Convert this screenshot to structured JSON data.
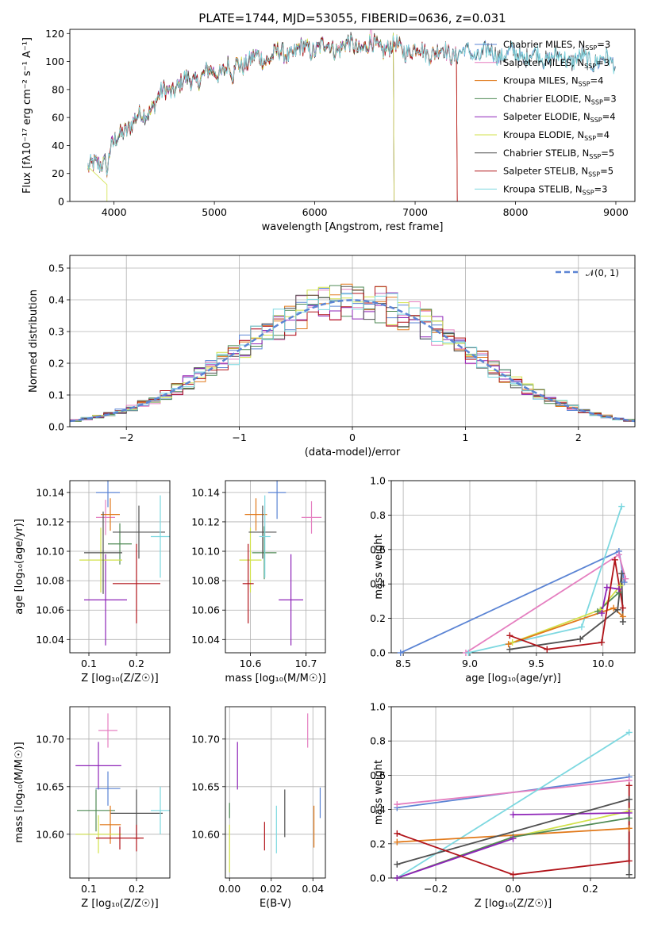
{
  "title": "PLATE=1744, MJD=53055, FIBERID=0636, z=0.031",
  "colors": {
    "blue": "#5b84d4",
    "pink": "#e57fc0",
    "orange": "#e1791a",
    "green": "#4f8a55",
    "purple": "#8e24b8",
    "yellow": "#d2e24a",
    "dark": "#505050",
    "red": "#b1141a",
    "cyan": "#7dd8e0"
  },
  "chart_data": [
    {
      "type": "line",
      "name": "spectrum",
      "xlabel": "wavelength [Angstrom, rest frame]",
      "ylabel": "Flux [fλ10⁻¹⁷ erg cm⁻² s⁻¹ A⁻¹]",
      "xlim": [
        3560,
        9190
      ],
      "ylim": [
        0,
        123
      ],
      "xticks": [
        "4000",
        "5000",
        "6000",
        "7000",
        "8000",
        "9000"
      ],
      "yticks": [
        "0",
        "20",
        "40",
        "60",
        "80",
        "100",
        "120"
      ],
      "legend": "top-right",
      "series": [
        {
          "name": "Chabrier MILES, N_SSP=3",
          "color": "#5b84d4",
          "x_end": 9000
        },
        {
          "name": "Salpeter MILES, N_SSP=3",
          "color": "#e57fc0",
          "x_end": 7420
        },
        {
          "name": "Kroupa MILES, N_SSP=4",
          "color": "#e1791a",
          "x_end": 7420
        },
        {
          "name": "Chabrier ELODIE, N_SSP=3",
          "color": "#4f8a55",
          "x_end": 6790
        },
        {
          "name": "Salpeter ELODIE, N_SSP=4",
          "color": "#8e24b8",
          "x_end": 6790
        },
        {
          "name": "Kroupa ELODIE, N_SSP=4",
          "color": "#d2e24a",
          "x_end": 6790
        },
        {
          "name": "Chabrier STELIB, N_SSP=5",
          "color": "#505050",
          "x_end": 9000
        },
        {
          "name": "Salpeter STELIB, N_SSP=5",
          "color": "#b1141a",
          "x_end": 7420
        },
        {
          "name": "Kroupa STELIB, N_SSP=3",
          "color": "#7dd8e0",
          "x_end": 9000
        }
      ],
      "continuum": {
        "x": [
          3740,
          3900,
          4000,
          4100,
          4300,
          4500,
          4700,
          4900,
          5100,
          5200,
          5500,
          5800,
          6000,
          6300,
          6500,
          6800,
          7000,
          7200,
          7420,
          7600,
          8000,
          8500,
          9000
        ],
        "y": [
          22,
          30,
          40,
          52,
          62,
          78,
          85,
          90,
          95,
          98,
          103,
          107,
          110,
          111,
          111,
          110,
          108,
          107,
          106,
          106,
          105,
          102,
          100
        ]
      }
    },
    {
      "type": "bar",
      "name": "residual-histogram",
      "xlabel": "(data-model)/error",
      "ylabel": "Normed distribution",
      "xlim": [
        -2.5,
        2.5
      ],
      "ylim": [
        0,
        0.54
      ],
      "xticks": [
        "−2",
        "−1",
        "0",
        "1",
        "2"
      ],
      "yticks": [
        "0.0",
        "0.1",
        "0.2",
        "0.3",
        "0.4",
        "0.5"
      ],
      "legend": "top-right",
      "reference": {
        "name": "𝒩(0, 1)",
        "color": "#5b84d4",
        "mean": 0,
        "sigma": 1
      }
    },
    {
      "type": "scatter",
      "name": "age-vs-Z",
      "xlabel": "Z [log₁₀(Z/Z☉)]",
      "ylabel": "age  [log₁₀(age/yr)]",
      "xlim": [
        0.06,
        0.27
      ],
      "ylim": [
        10.031,
        10.148
      ],
      "xticks": [
        "0.1",
        "0.2"
      ],
      "yticks": [
        "10.04",
        "10.06",
        "10.08",
        "10.10",
        "10.12",
        "10.14"
      ],
      "points": [
        {
          "color": "#5b84d4",
          "x": 0.14,
          "y": 10.14,
          "xerr": 0.025,
          "yerr": 0.01
        },
        {
          "color": "#e57fc0",
          "x": 0.135,
          "y": 10.123,
          "xerr": 0.02,
          "yerr": 0.012
        },
        {
          "color": "#e1791a",
          "x": 0.145,
          "y": 10.125,
          "xerr": 0.02,
          "yerr": 0.011
        },
        {
          "color": "#4f8a55",
          "x": 0.165,
          "y": 10.105,
          "xerr": 0.025,
          "yerr": 0.014
        },
        {
          "color": "#8e24b8",
          "x": 0.135,
          "y": 10.067,
          "xerr": 0.045,
          "yerr": 0.031
        },
        {
          "color": "#d2e24a",
          "x": 0.125,
          "y": 10.094,
          "xerr": 0.045,
          "yerr": 0.022
        },
        {
          "color": "#505050",
          "x": 0.205,
          "y": 10.113,
          "xerr": 0.055,
          "yerr": 0.018
        },
        {
          "color": "#b1141a",
          "x": 0.2,
          "y": 10.078,
          "xerr": 0.05,
          "yerr": 0.027
        },
        {
          "color": "#7dd8e0",
          "x": 0.25,
          "y": 10.11,
          "xerr": 0.02,
          "yerr": 0.028
        },
        {
          "color": "#505050",
          "x": 0.13,
          "y": 10.099,
          "xerr": 0.04,
          "yerr": 0.028
        }
      ]
    },
    {
      "type": "scatter",
      "name": "age-vs-mass",
      "xlabel": "mass [log₁₀(M/M☉)]",
      "ylabel": "",
      "xlim": [
        10.555,
        10.735
      ],
      "ylim": [
        10.031,
        10.148
      ],
      "xticks": [
        "10.6",
        "10.7"
      ],
      "yticks": [
        "10.04",
        "10.06",
        "10.08",
        "10.10",
        "10.12",
        "10.14"
      ],
      "points": [
        {
          "color": "#5b84d4",
          "x": 10.648,
          "y": 10.14,
          "xerr": 0.016,
          "yerr": 0.018
        },
        {
          "color": "#e57fc0",
          "x": 10.71,
          "y": 10.123,
          "xerr": 0.018,
          "yerr": 0.011
        },
        {
          "color": "#e1791a",
          "x": 10.61,
          "y": 10.125,
          "xerr": 0.02,
          "yerr": 0.011
        },
        {
          "color": "#4f8a55",
          "x": 10.625,
          "y": 10.099,
          "xerr": 0.022,
          "yerr": 0.018
        },
        {
          "color": "#8e24b8",
          "x": 10.673,
          "y": 10.067,
          "xerr": 0.022,
          "yerr": 0.031
        },
        {
          "color": "#d2e24a",
          "x": 10.6,
          "y": 10.094,
          "xerr": 0.02,
          "yerr": 0.022
        },
        {
          "color": "#505050",
          "x": 10.622,
          "y": 10.113,
          "xerr": 0.025,
          "yerr": 0.018
        },
        {
          "color": "#b1141a",
          "x": 10.596,
          "y": 10.078,
          "xerr": 0.01,
          "yerr": 0.027
        },
        {
          "color": "#7dd8e0",
          "x": 10.626,
          "y": 10.11,
          "xerr": 0.01,
          "yerr": 0.028
        }
      ]
    },
    {
      "type": "line",
      "name": "weight-vs-age",
      "xlabel": "age  [log₁₀(age/yr)]",
      "ylabel": "mass weight",
      "xlim": [
        8.41,
        10.24
      ],
      "ylim": [
        0,
        1.0
      ],
      "xticks": [
        "8.5",
        "9.0",
        "9.5",
        "10.0"
      ],
      "yticks": [
        "0.0",
        "0.2",
        "0.4",
        "0.6",
        "0.8",
        "1.0"
      ],
      "series": [
        {
          "color": "#5b84d4",
          "x": [
            8.48,
            10.12,
            10.16
          ],
          "y": [
            0.0,
            0.59,
            0.41
          ]
        },
        {
          "color": "#e57fc0",
          "x": [
            8.97,
            10.12,
            10.17
          ],
          "y": [
            0.0,
            0.57,
            0.43
          ]
        },
        {
          "color": "#7dd8e0",
          "x": [
            8.99,
            9.84,
            10.14
          ],
          "y": [
            0.0,
            0.15,
            0.85
          ]
        },
        {
          "color": "#d2e24a",
          "x": [
            9.32,
            9.98,
            10.13
          ],
          "y": [
            0.06,
            0.25,
            0.39
          ]
        },
        {
          "color": "#e1791a",
          "x": [
            9.29,
            10.08,
            10.15
          ],
          "y": [
            0.05,
            0.26,
            0.21
          ]
        },
        {
          "color": "#4f8a55",
          "x": [
            9.96,
            10.12
          ],
          "y": [
            0.24,
            0.35
          ]
        },
        {
          "color": "#8e24b8",
          "x": [
            9.99,
            10.03,
            10.12
          ],
          "y": [
            0.23,
            0.38,
            0.37
          ]
        },
        {
          "color": "#505050",
          "x": [
            9.3,
            9.83,
            10.11,
            10.14,
            10.15
          ],
          "y": [
            0.02,
            0.08,
            0.25,
            0.46,
            0.18
          ]
        },
        {
          "color": "#b1141a",
          "x": [
            9.3,
            9.58,
            9.99,
            10.09,
            10.15
          ],
          "y": [
            0.1,
            0.02,
            0.06,
            0.54,
            0.26
          ]
        }
      ]
    },
    {
      "type": "scatter",
      "name": "mass-vs-Z",
      "xlabel": "Z [log₁₀(Z/Z☉)]",
      "ylabel": "mass [log₁₀(M/M☉)]",
      "xlim": [
        0.06,
        0.27
      ],
      "ylim": [
        10.554,
        10.734
      ],
      "xticks": [
        "0.1",
        "0.2"
      ],
      "yticks": [
        "10.60",
        "10.65",
        "10.70"
      ],
      "points": [
        {
          "color": "#e57fc0",
          "x": 0.14,
          "y": 10.709,
          "xerr": 0.02,
          "yerr": 0.018
        },
        {
          "color": "#8e24b8",
          "x": 0.12,
          "y": 10.672,
          "xerr": 0.048,
          "yerr": 0.025
        },
        {
          "color": "#5b84d4",
          "x": 0.14,
          "y": 10.648,
          "xerr": 0.026,
          "yerr": 0.018
        },
        {
          "color": "#4f8a55",
          "x": 0.115,
          "y": 10.625,
          "xerr": 0.04,
          "yerr": 0.022
        },
        {
          "color": "#505050",
          "x": 0.2,
          "y": 10.622,
          "xerr": 0.055,
          "yerr": 0.025
        },
        {
          "color": "#7dd8e0",
          "x": 0.25,
          "y": 10.625,
          "xerr": 0.02,
          "yerr": 0.025
        },
        {
          "color": "#e1791a",
          "x": 0.145,
          "y": 10.61,
          "xerr": 0.022,
          "yerr": 0.02
        },
        {
          "color": "#d2e24a",
          "x": 0.12,
          "y": 10.6,
          "xerr": 0.048,
          "yerr": 0.02
        },
        {
          "color": "#b1141a",
          "x": 0.165,
          "y": 10.596,
          "xerr": 0.05,
          "yerr": 0.012
        },
        {
          "color": "#b1141a",
          "x": 0.2,
          "y": 10.596,
          "xerr": 0.006,
          "yerr": 0.014
        }
      ]
    },
    {
      "type": "scatter",
      "name": "mass-vs-ebv",
      "xlabel": "E(B-V)",
      "ylabel": "",
      "xlim": [
        -0.002,
        0.046
      ],
      "ylim": [
        10.554,
        10.734
      ],
      "xticks": [
        "0.00",
        "0.02",
        "0.04"
      ],
      "yticks": [
        "10.60",
        "10.65",
        "10.70"
      ],
      "points": [
        {
          "color": "#e57fc0",
          "x": 0.0375,
          "y": 10.709,
          "yerr": 0.018
        },
        {
          "color": "#8e24b8",
          "x": 0.0038,
          "y": 10.672,
          "yerr": 0.025
        },
        {
          "color": "#5b84d4",
          "x": 0.0435,
          "y": 10.633,
          "yerr": 0.016
        },
        {
          "color": "#4f8a55",
          "x": 0.0,
          "y": 10.625,
          "yerr": 0.008
        },
        {
          "color": "#505050",
          "x": 0.0265,
          "y": 10.622,
          "yerr": 0.025
        },
        {
          "color": "#7dd8e0",
          "x": 0.0225,
          "y": 10.605,
          "yerr": 0.025
        },
        {
          "color": "#e1791a",
          "x": 0.0405,
          "y": 10.608,
          "yerr": 0.022
        },
        {
          "color": "#d2e24a",
          "x": 0.0,
          "y": 10.585,
          "yerr": 0.025
        },
        {
          "color": "#b1141a",
          "x": 0.0168,
          "y": 10.598,
          "yerr": 0.015
        }
      ]
    },
    {
      "type": "line",
      "name": "weight-vs-Z",
      "xlabel": "Z [log₁₀(Z/Z☉)]",
      "ylabel": "mass weight",
      "xlim": [
        -0.315,
        0.315
      ],
      "ylim": [
        0,
        1.0
      ],
      "xticks": [
        "−0.2",
        "0.0",
        "0.2"
      ],
      "yticks": [
        "0.0",
        "0.2",
        "0.4",
        "0.6",
        "0.8",
        "1.0"
      ],
      "series": [
        {
          "color": "#5b84d4",
          "x": [
            -0.3,
            0.3
          ],
          "y": [
            0.41,
            0.59
          ]
        },
        {
          "color": "#e57fc0",
          "x": [
            -0.3,
            0.3
          ],
          "y": [
            0.43,
            0.57
          ]
        },
        {
          "color": "#7dd8e0",
          "x": [
            -0.3,
            0.3
          ],
          "y": [
            0.0,
            0.85
          ]
        },
        {
          "color": "#d2e24a",
          "x": [
            -0.3,
            0.0,
            0.3
          ],
          "y": [
            0.0,
            0.24,
            0.39
          ]
        },
        {
          "color": "#e1791a",
          "x": [
            -0.3,
            0.3
          ],
          "y": [
            0.21,
            0.29
          ]
        },
        {
          "color": "#4f8a55",
          "x": [
            -0.3,
            0.0,
            0.3
          ],
          "y": [
            0.0,
            0.24,
            0.35
          ]
        },
        {
          "color": "#8e24b8",
          "x": [
            0.0,
            0.3
          ],
          "y": [
            0.37,
            0.38
          ]
        },
        {
          "color": "#8e24b8",
          "x": [
            -0.3,
            0.0
          ],
          "y": [
            0.0,
            0.23
          ]
        },
        {
          "color": "#505050",
          "x": [
            -0.3,
            0.3
          ],
          "y": [
            0.08,
            0.46
          ]
        },
        {
          "color": "#505050",
          "x": [
            0.3,
            0.3
          ],
          "y": [
            0.02,
            0.46
          ]
        },
        {
          "color": "#b1141a",
          "x": [
            -0.3,
            0.0,
            0.3,
            0.3
          ],
          "y": [
            0.26,
            0.02,
            0.1,
            0.54
          ]
        }
      ]
    }
  ]
}
